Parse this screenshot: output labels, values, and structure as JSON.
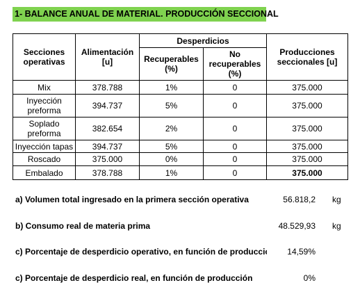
{
  "header": {
    "title": "1- BALANCE ANUAL DE MATERIAL. PRODUCCIÓN SECCIONAL"
  },
  "table": {
    "columns": [
      "Secciones operativas",
      "Alimentación [u]",
      "Desperdicios",
      "Recuperables (%)",
      "No recuperables (%)",
      "Producciones seccionales [u]"
    ],
    "rows": [
      [
        "Mix",
        "378.788",
        "1%",
        "0",
        "375.000"
      ],
      [
        "Inyección preforma",
        "394.737",
        "5%",
        "0",
        "375.000"
      ],
      [
        "Soplado preforma",
        "382.654",
        "2%",
        "0",
        "375.000"
      ],
      [
        "Inyección tapas",
        "394.737",
        "5%",
        "0",
        "375.000"
      ],
      [
        "Roscado",
        "375.000",
        "0%",
        "0",
        "375.000"
      ],
      [
        "Embalado",
        "378.788",
        "1%",
        "0",
        "375.000"
      ]
    ]
  },
  "results": [
    {
      "label": "a) Volumen total ingresado en la primera sección operativa",
      "value": "56.818,2",
      "unit": "kg"
    },
    {
      "label": "b) Consumo real de materia prima",
      "value": "48.529,93",
      "unit": "kg"
    },
    {
      "label": "c) Porcentaje de desperdicio operativo, en función de producción",
      "value": "14,59%"
    },
    {
      "label": "c) Porcentaje de desperdicio real, en función de producción",
      "value": "0%"
    }
  ]
}
